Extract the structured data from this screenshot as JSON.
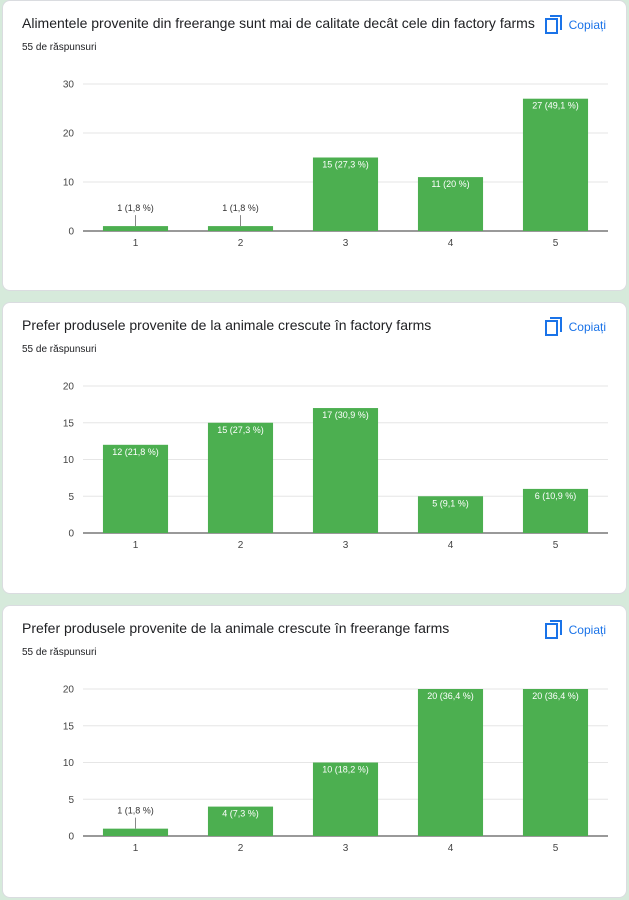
{
  "cards": [
    {
      "title": "Alimentele provenite din freerange sunt mai de calitate decât cele din factory farms",
      "count": "55 de răspunsuri",
      "copy_label": "Copiați"
    },
    {
      "title": "Prefer produsele provenite de la animale crescute în factory farms",
      "count": "55 de răspunsuri",
      "copy_label": "Copiați"
    },
    {
      "title": "Prefer produsele provenite de la animale crescute în freerange farms",
      "count": "55 de răspunsuri",
      "copy_label": "Copiați"
    }
  ],
  "colors": {
    "bar": "#4caf50",
    "copy": "#1a73e8",
    "grid": "#e6e6e6"
  },
  "chart_data": [
    {
      "type": "bar",
      "categories": [
        "1",
        "2",
        "3",
        "4",
        "5"
      ],
      "values": [
        1,
        1,
        15,
        11,
        27
      ],
      "data_labels": [
        "1 (1,8 %)",
        "1 (1,8 %)",
        "15 (27,3 %)",
        "11 (20 %)",
        "27 (49,1 %)"
      ],
      "yticks": [
        "0",
        "10",
        "20",
        "30"
      ],
      "ylim": [
        0,
        30
      ]
    },
    {
      "type": "bar",
      "categories": [
        "1",
        "2",
        "3",
        "4",
        "5"
      ],
      "values": [
        12,
        15,
        17,
        5,
        6
      ],
      "data_labels": [
        "12 (21,8 %)",
        "15 (27,3 %)",
        "17 (30,9 %)",
        "5 (9,1 %)",
        "6 (10,9 %)"
      ],
      "yticks": [
        "0",
        "5",
        "10",
        "15",
        "20"
      ],
      "ylim": [
        0,
        20
      ]
    },
    {
      "type": "bar",
      "categories": [
        "1",
        "2",
        "3",
        "4",
        "5"
      ],
      "values": [
        1,
        4,
        10,
        20,
        20
      ],
      "data_labels": [
        "1 (1,8 %)",
        "4 (7,3 %)",
        "10 (18,2 %)",
        "20 (36,4 %)",
        "20 (36,4 %)"
      ],
      "yticks": [
        "0",
        "5",
        "10",
        "15",
        "20"
      ],
      "ylim": [
        0,
        20
      ]
    }
  ]
}
